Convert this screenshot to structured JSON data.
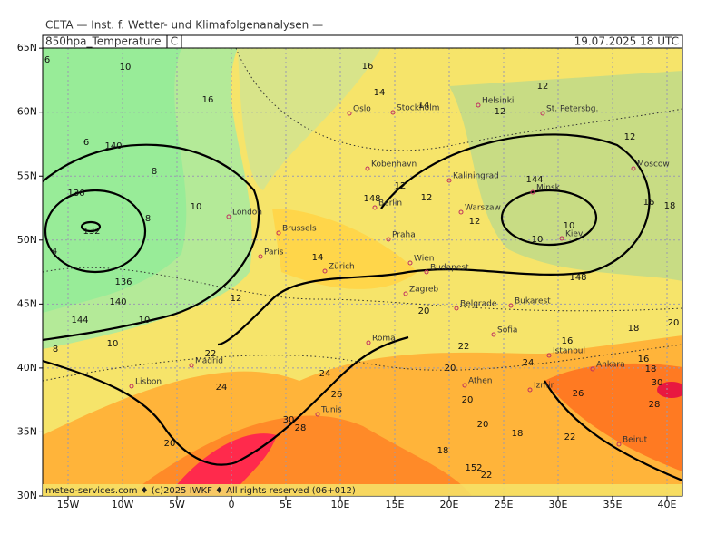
{
  "header": {
    "institute": "CETA — Inst. f. Wetter- und Klimafolgenanalysen —",
    "field": "850hpa_Temperature",
    "unit": "C",
    "valid": "19.07.2025 18 UTC",
    "footer": "meteo-services.com ♦ (c)2025 IWKF ♦ All rights reserved (06+012)"
  },
  "axes": {
    "lon_ticks": [
      {
        "value": -15,
        "label": "15W"
      },
      {
        "value": -10,
        "label": "10W"
      },
      {
        "value": -5,
        "label": "5W"
      },
      {
        "value": 0,
        "label": "0"
      },
      {
        "value": 5,
        "label": "5E"
      },
      {
        "value": 10,
        "label": "10E"
      },
      {
        "value": 15,
        "label": "15E"
      },
      {
        "value": 20,
        "label": "20E"
      },
      {
        "value": 25,
        "label": "25E"
      },
      {
        "value": 30,
        "label": "30E"
      },
      {
        "value": 35,
        "label": "35E"
      },
      {
        "value": 40,
        "label": "40E"
      }
    ],
    "lat_ticks": [
      {
        "value": 65,
        "label": "65N"
      },
      {
        "value": 60,
        "label": "60N"
      },
      {
        "value": 55,
        "label": "55N"
      },
      {
        "value": 50,
        "label": "50N"
      },
      {
        "value": 45,
        "label": "45N"
      },
      {
        "value": 40,
        "label": "40N"
      },
      {
        "value": 35,
        "label": "35N"
      },
      {
        "value": 30,
        "label": "30N"
      }
    ]
  },
  "cities": [
    "Oslo",
    "Stockholm",
    "Helsinki",
    "St. Petersbg.",
    "Kobenhavn",
    "Kaliningrad",
    "Moscow",
    "London",
    "Berlin",
    "Warszaw",
    "Minsk",
    "Kiev",
    "Brussels",
    "Praha",
    "Paris",
    "Wien",
    "Budapest",
    "Zürich",
    "Zagreb",
    "Belgrade",
    "Bukarest",
    "Madrid",
    "Roma",
    "Sofia",
    "Lisbon",
    "Istanbul",
    "Ankara",
    "Athen",
    "Izmir",
    "Tunis",
    "Beirut"
  ],
  "isolines": [
    6,
    10,
    16,
    16,
    14,
    12,
    14,
    12,
    12,
    6,
    140,
    8,
    136,
    8,
    132,
    10,
    4,
    136,
    140,
    144,
    10,
    8,
    10,
    12,
    14,
    148,
    12,
    12,
    12,
    144,
    10,
    10,
    16,
    18,
    148,
    18,
    16,
    20,
    20,
    22,
    24,
    24,
    26,
    28,
    30,
    20,
    18,
    20,
    22,
    24,
    20,
    18,
    20,
    22,
    26,
    28,
    30,
    152,
    22,
    16,
    18
  ]
}
